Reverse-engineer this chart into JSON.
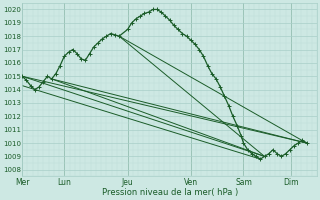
{
  "bg_color": "#cde8e3",
  "grid_color_major": "#a8cfc8",
  "grid_color_minor": "#bcddd8",
  "line_color": "#1a5c28",
  "ylim": [
    1007.5,
    1020.5
  ],
  "ytick_vals": [
    1008,
    1009,
    1010,
    1011,
    1012,
    1013,
    1014,
    1015,
    1016,
    1017,
    1018,
    1019,
    1020
  ],
  "xlabel": "Pression niveau de la mer( hPa )",
  "day_labels": [
    "Mer",
    "Lun",
    "Jeu",
    "Ven",
    "Sam",
    "Dim"
  ],
  "day_positions": [
    0,
    40,
    100,
    160,
    210,
    255
  ],
  "xlim": [
    0,
    280
  ],
  "series": [
    [
      0,
      1015.0
    ],
    [
      4,
      1014.7
    ],
    [
      8,
      1014.3
    ],
    [
      12,
      1014.0
    ],
    [
      16,
      1014.2
    ],
    [
      20,
      1014.6
    ],
    [
      24,
      1015.0
    ],
    [
      28,
      1014.8
    ],
    [
      32,
      1015.2
    ],
    [
      36,
      1015.8
    ],
    [
      40,
      1016.5
    ],
    [
      44,
      1016.8
    ],
    [
      48,
      1017.0
    ],
    [
      52,
      1016.7
    ],
    [
      56,
      1016.3
    ],
    [
      60,
      1016.2
    ],
    [
      64,
      1016.7
    ],
    [
      68,
      1017.2
    ],
    [
      72,
      1017.5
    ],
    [
      76,
      1017.8
    ],
    [
      80,
      1018.0
    ],
    [
      84,
      1018.2
    ],
    [
      88,
      1018.1
    ],
    [
      92,
      1018.0
    ],
    [
      100,
      1018.5
    ],
    [
      104,
      1019.0
    ],
    [
      108,
      1019.3
    ],
    [
      112,
      1019.5
    ],
    [
      116,
      1019.7
    ],
    [
      120,
      1019.8
    ],
    [
      124,
      1020.0
    ],
    [
      128,
      1020.0
    ],
    [
      132,
      1019.8
    ],
    [
      136,
      1019.5
    ],
    [
      140,
      1019.2
    ],
    [
      144,
      1018.8
    ],
    [
      148,
      1018.5
    ],
    [
      152,
      1018.2
    ],
    [
      156,
      1018.0
    ],
    [
      160,
      1017.7
    ],
    [
      164,
      1017.4
    ],
    [
      168,
      1017.0
    ],
    [
      172,
      1016.5
    ],
    [
      176,
      1015.8
    ],
    [
      180,
      1015.2
    ],
    [
      184,
      1014.8
    ],
    [
      188,
      1014.2
    ],
    [
      192,
      1013.5
    ],
    [
      196,
      1012.8
    ],
    [
      200,
      1012.0
    ],
    [
      204,
      1011.3
    ],
    [
      208,
      1010.5
    ],
    [
      210,
      1010.0
    ],
    [
      214,
      1009.5
    ],
    [
      218,
      1009.2
    ],
    [
      222,
      1009.0
    ],
    [
      226,
      1008.8
    ],
    [
      230,
      1009.0
    ],
    [
      234,
      1009.2
    ],
    [
      238,
      1009.5
    ],
    [
      242,
      1009.2
    ],
    [
      246,
      1009.0
    ],
    [
      250,
      1009.2
    ],
    [
      254,
      1009.5
    ],
    [
      258,
      1009.8
    ],
    [
      262,
      1010.0
    ],
    [
      266,
      1010.2
    ],
    [
      270,
      1010.0
    ]
  ],
  "trend_lines": [
    [
      [
        0,
        270
      ],
      [
        1015.0,
        1010.0
      ]
    ],
    [
      [
        0,
        230
      ],
      [
        1015.0,
        1009.0
      ]
    ],
    [
      [
        0,
        226
      ],
      [
        1014.3,
        1008.8
      ]
    ],
    [
      [
        28,
        270
      ],
      [
        1014.8,
        1010.0
      ]
    ],
    [
      [
        28,
        230
      ],
      [
        1014.8,
        1009.0
      ]
    ],
    [
      [
        92,
        270
      ],
      [
        1018.0,
        1010.0
      ]
    ],
    [
      [
        92,
        230
      ],
      [
        1018.0,
        1009.0
      ]
    ]
  ]
}
